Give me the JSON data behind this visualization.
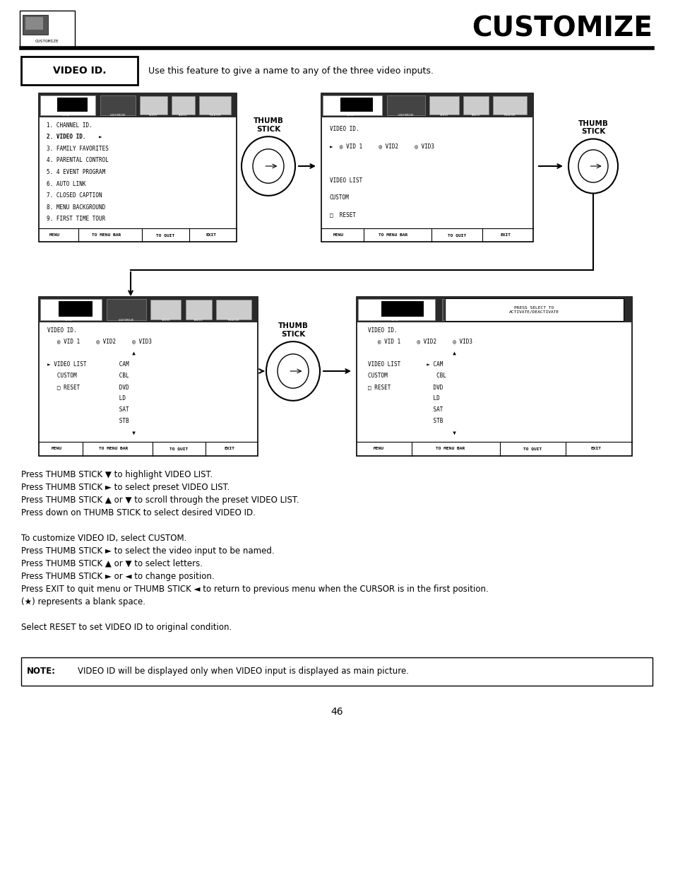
{
  "title": "CUSTOMIZE",
  "page_number": "46",
  "section_label": "VIDEO ID.",
  "section_desc": "Use this feature to give a name to any of the three video inputs.",
  "body_lines": [
    "Press THUMB STICK ▼ to highlight VIDEO LIST.",
    "Press THUMB STICK ► to select preset VIDEO LIST.",
    "Press THUMB STICK ▲ or ▼ to scroll through the preset VIDEO LIST.",
    "Press down on THUMB STICK to select desired VIDEO ID.",
    "",
    "To customize VIDEO ID, select CUSTOM.",
    "Press THUMB STICK ► to select the video input to be named.",
    "Press THUMB STICK ▲ or ▼ to select letters.",
    "Press THUMB STICK ► or ◄ to change position.",
    "Press EXIT to quit menu or THUMB STICK ◄ to return to previous menu when the CURSOR is in the first position.",
    "(★) represents a blank space.",
    "",
    "Select RESET to set VIDEO ID to original condition."
  ],
  "note_bold": "NOTE:",
  "note_text": "VIDEO ID will be displayed only when VIDEO input is displayed as main picture.",
  "box1_lines": [
    "1. CHANNEL ID.",
    "2. VIDEO ID.    ►",
    "3. FAMILY FAVORITES",
    "4. PARENTAL CONTROL",
    "5. 4 EVENT PROGRAM",
    "6. AUTO LINK",
    "7. CLOSED CAPTION",
    "8. MENU BACKGROUND",
    "9. FIRST TIME TOUR"
  ],
  "box2_lines": [
    "VIDEO ID.",
    "►  ◎ VID 1     ◎ VID2     ◎ VID3",
    "",
    "VIDEO LIST",
    "CUSTOM",
    "□  RESET"
  ],
  "box3_lines": [
    "VIDEO ID.",
    "   ◎ VID 1     ◎ VID2     ◎ VID3",
    "                          ▲",
    "► VIDEO LIST          CAM",
    "   CUSTOM             CBL",
    "   □ RESET            DVD",
    "                      LD",
    "                      SAT",
    "                      STB",
    "                          ▼"
  ],
  "box4_lines": [
    "VIDEO ID.",
    "   ◎ VID 1     ◎ VID2     ◎ VID3",
    "                          ▲",
    "VIDEO LIST        ► CAM",
    "CUSTOM               CBL",
    "□ RESET             DVD",
    "                    LD",
    "                    SAT",
    "                    STB",
    "                          ▼"
  ],
  "footer_items": [
    "MENU",
    "TO MENU BAR",
    "TO QUIT",
    "EXIT"
  ],
  "footer_dividers": [
    0.2,
    0.52,
    0.76
  ]
}
